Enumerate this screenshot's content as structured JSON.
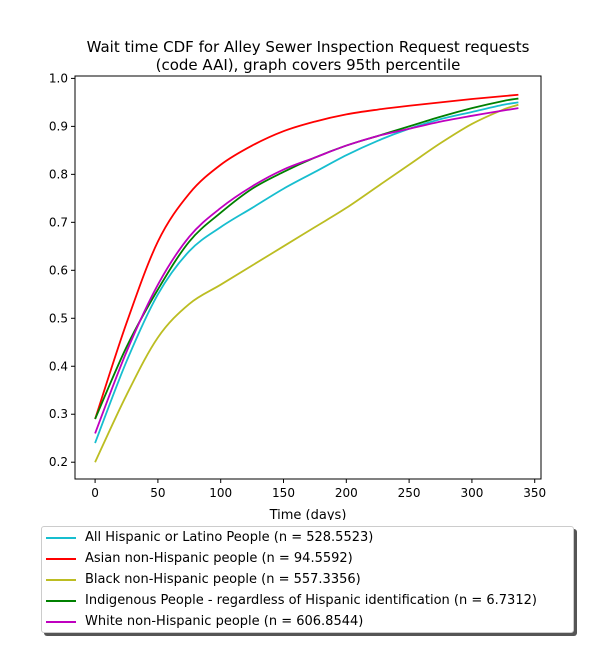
{
  "chart_data": {
    "type": "line",
    "title_line1": "Wait time CDF for Alley Sewer Inspection Request  requests",
    "title_line2": "(code AAI), graph covers 95th percentile",
    "xlabel": "Time (days)",
    "ylabel": "",
    "xlim": [
      -16,
      355
    ],
    "ylim": [
      0.165,
      1.005
    ],
    "xticks": [
      0,
      50,
      100,
      150,
      200,
      250,
      300,
      350
    ],
    "yticks": [
      0.2,
      0.3,
      0.4,
      0.5,
      0.6,
      0.7,
      0.8,
      0.9,
      1.0
    ],
    "xtick_labels": [
      "0",
      "50",
      "100",
      "150",
      "200",
      "250",
      "300",
      "350"
    ],
    "ytick_labels": [
      "0.2",
      "0.3",
      "0.4",
      "0.5",
      "0.6",
      "0.7",
      "0.8",
      "0.9",
      "1.0"
    ],
    "grid": false,
    "legend_position": "below",
    "x": [
      0,
      25,
      50,
      75,
      100,
      125,
      150,
      175,
      200,
      225,
      250,
      275,
      300,
      325,
      337
    ],
    "series": [
      {
        "name": "All Hispanic or Latino People (n = 528.5523)",
        "color": "#17becf",
        "values": [
          0.24,
          0.41,
          0.55,
          0.64,
          0.69,
          0.73,
          0.77,
          0.805,
          0.84,
          0.87,
          0.895,
          0.915,
          0.93,
          0.945,
          0.95
        ]
      },
      {
        "name": "Asian non-Hispanic people (n = 94.5592)",
        "color": "#ff0000",
        "values": [
          0.29,
          0.49,
          0.66,
          0.76,
          0.82,
          0.86,
          0.89,
          0.91,
          0.925,
          0.935,
          0.943,
          0.95,
          0.957,
          0.963,
          0.966
        ]
      },
      {
        "name": "Black non-Hispanic people (n = 557.3356)",
        "color": "#bcbd22",
        "values": [
          0.2,
          0.34,
          0.46,
          0.53,
          0.57,
          0.61,
          0.65,
          0.69,
          0.73,
          0.775,
          0.82,
          0.865,
          0.905,
          0.935,
          0.945
        ]
      },
      {
        "name": "Indigenous People - regardless of Hispanic identification (n = 6.7312)",
        "color": "#008000",
        "values": [
          0.29,
          0.44,
          0.56,
          0.66,
          0.72,
          0.77,
          0.805,
          0.835,
          0.86,
          0.88,
          0.9,
          0.92,
          0.938,
          0.953,
          0.958
        ]
      },
      {
        "name": "White non-Hispanic people (n = 606.8544)",
        "color": "#bf00bf",
        "values": [
          0.26,
          0.43,
          0.57,
          0.67,
          0.73,
          0.775,
          0.81,
          0.835,
          0.86,
          0.88,
          0.895,
          0.91,
          0.922,
          0.933,
          0.938
        ]
      }
    ]
  }
}
